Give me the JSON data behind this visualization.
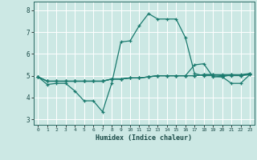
{
  "title": "",
  "xlabel": "Humidex (Indice chaleur)",
  "background_color": "#cce8e4",
  "grid_color": "#ffffff",
  "line_color": "#1a7a6e",
  "xlim": [
    -0.5,
    23.5
  ],
  "ylim": [
    2.75,
    8.4
  ],
  "xticks": [
    0,
    1,
    2,
    3,
    4,
    5,
    6,
    7,
    8,
    9,
    10,
    11,
    12,
    13,
    14,
    15,
    16,
    17,
    18,
    19,
    20,
    21,
    22,
    23
  ],
  "yticks": [
    3,
    4,
    5,
    6,
    7,
    8
  ],
  "series": [
    [
      4.95,
      4.6,
      4.65,
      4.65,
      4.3,
      3.85,
      3.85,
      3.35,
      4.65,
      6.55,
      6.6,
      7.3,
      7.85,
      7.6,
      7.6,
      7.6,
      6.75,
      5.1,
      5.0,
      5.0,
      4.95,
      5.05,
      5.0,
      5.1
    ],
    [
      4.95,
      4.75,
      4.75,
      4.75,
      4.75,
      4.75,
      4.75,
      4.75,
      4.85,
      4.85,
      4.9,
      4.9,
      4.95,
      5.0,
      5.0,
      5.0,
      5.0,
      5.0,
      5.05,
      5.05,
      5.0,
      5.0,
      5.0,
      5.05
    ],
    [
      4.95,
      4.75,
      4.75,
      4.75,
      4.75,
      4.75,
      4.75,
      4.75,
      4.85,
      4.85,
      4.9,
      4.9,
      4.95,
      5.0,
      5.0,
      5.0,
      5.0,
      5.0,
      5.05,
      5.05,
      5.05,
      5.05,
      5.05,
      5.1
    ],
    [
      4.95,
      4.75,
      4.75,
      4.75,
      4.75,
      4.75,
      4.75,
      4.75,
      4.85,
      4.85,
      4.9,
      4.9,
      4.95,
      5.0,
      5.0,
      5.0,
      5.0,
      5.5,
      5.55,
      4.95,
      4.95,
      4.65,
      4.65,
      5.05
    ]
  ]
}
